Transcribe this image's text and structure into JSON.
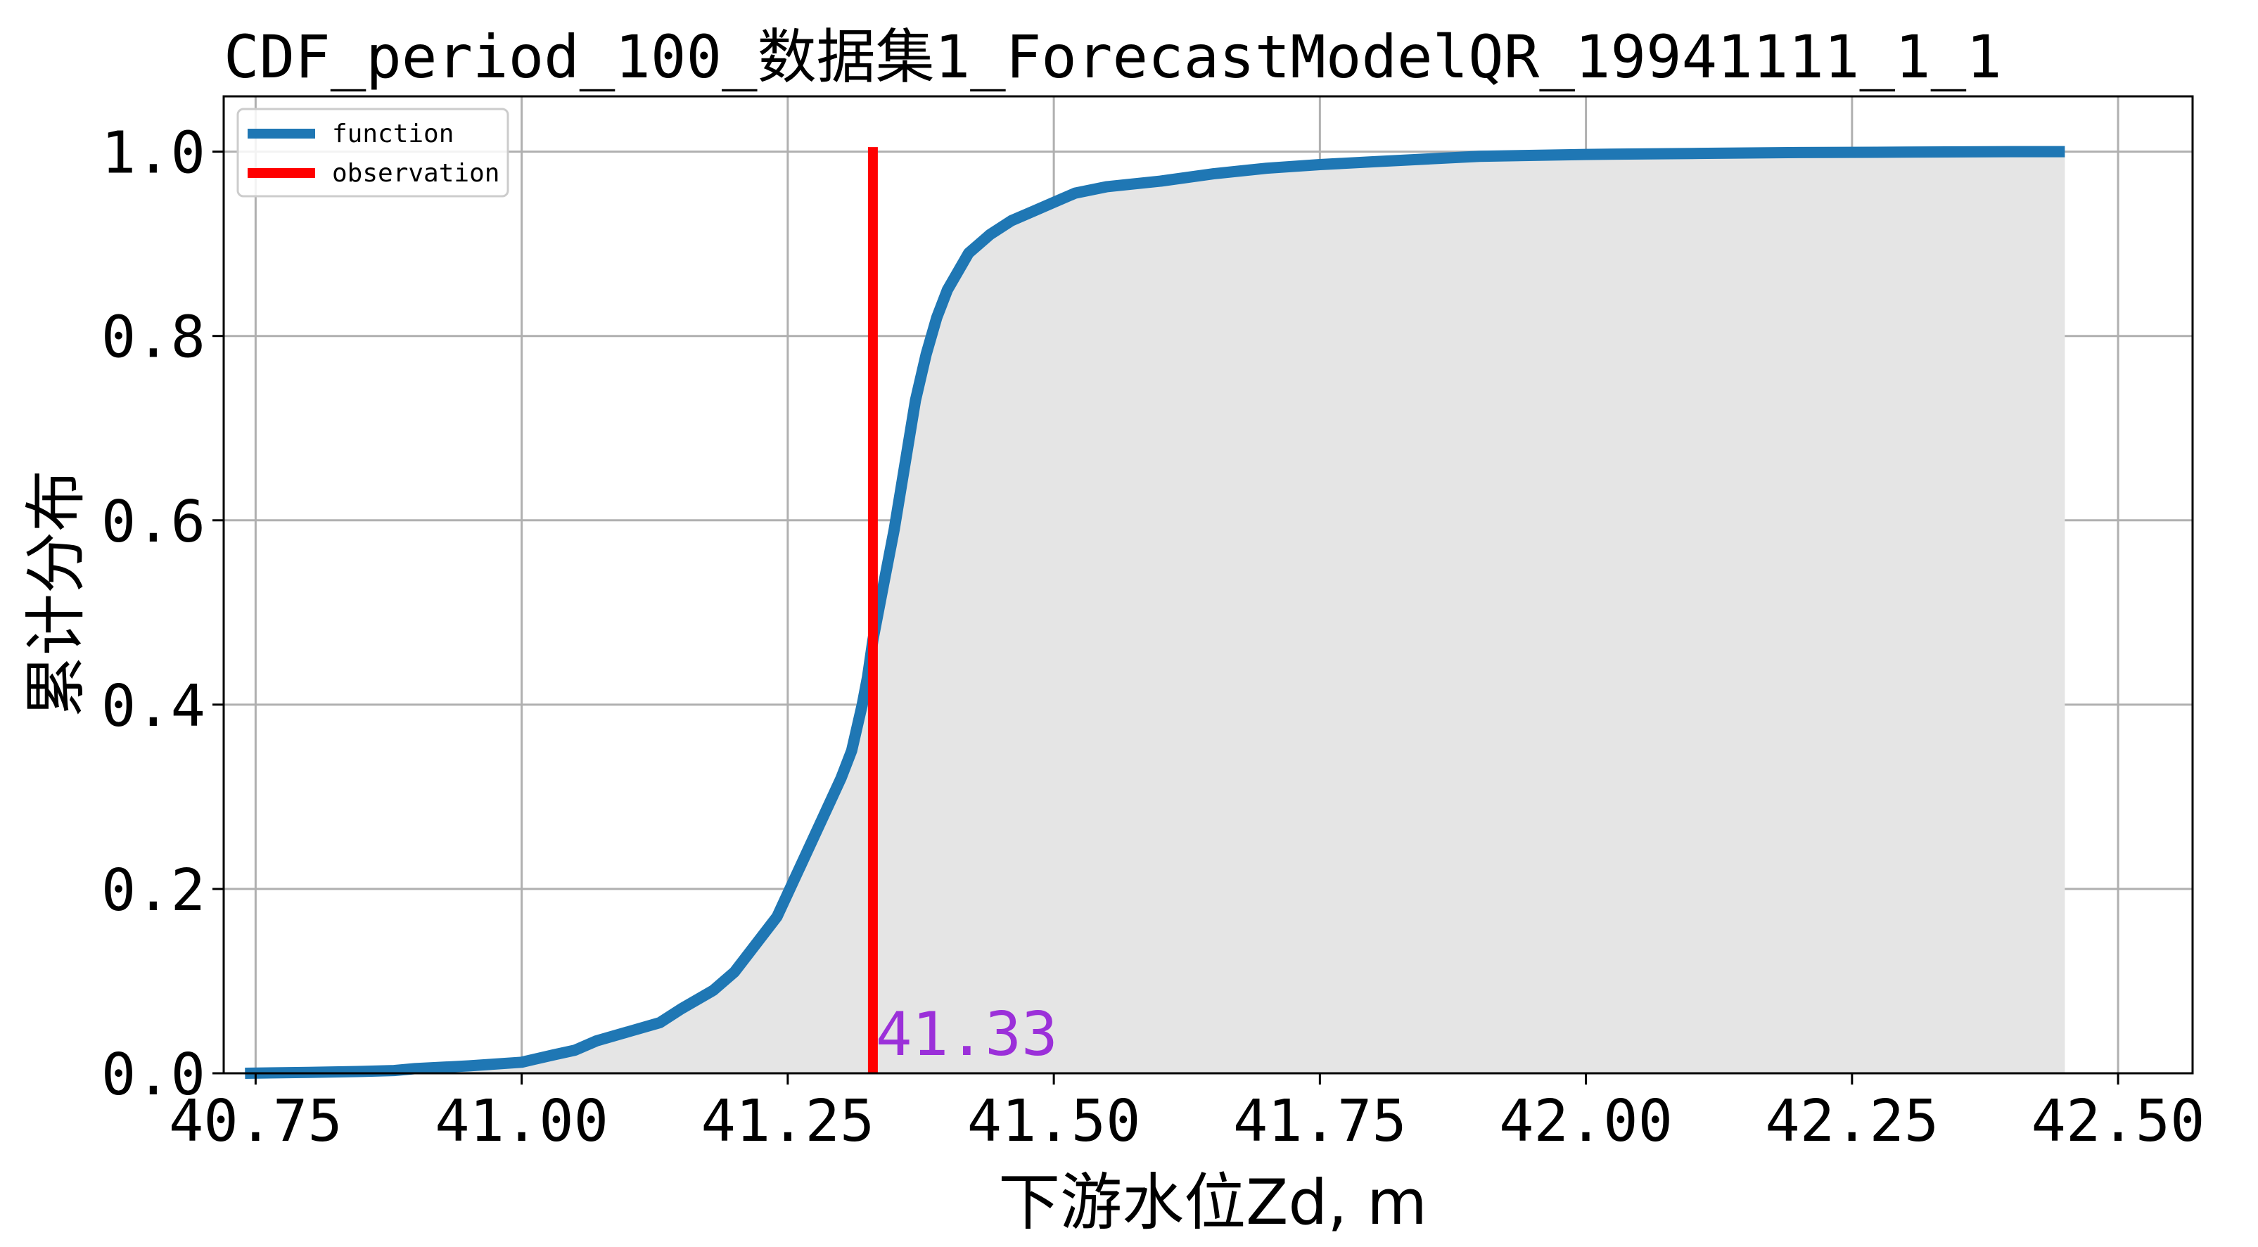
{
  "chart_data": {
    "type": "line",
    "title": "CDF_period_100_数据集1_ForecastModelQR_19941111_1_1",
    "xlabel": "下游水位Zd, m",
    "ylabel": "累计分布",
    "xlim": [
      40.72,
      42.57
    ],
    "ylim": [
      0.0,
      1.06
    ],
    "xticks": [
      "40.75",
      "41.00",
      "41.25",
      "41.50",
      "41.75",
      "42.00",
      "42.25",
      "42.50"
    ],
    "xtick_values": [
      40.75,
      41.0,
      41.25,
      41.5,
      41.75,
      42.0,
      42.25,
      42.5
    ],
    "yticks": [
      "0.0",
      "0.2",
      "0.4",
      "0.6",
      "0.8",
      "1.0"
    ],
    "ytick_values": [
      0.0,
      0.2,
      0.4,
      0.6,
      0.8,
      1.0
    ],
    "grid": true,
    "legend_position": "top-left",
    "series": [
      {
        "name": "function",
        "color": "#1f77b4",
        "fill_color": "#e5e5e5",
        "x": [
          40.74,
          40.8,
          40.85,
          40.88,
          40.9,
          40.95,
          41.0,
          41.03,
          41.05,
          41.07,
          41.1,
          41.13,
          41.15,
          41.18,
          41.2,
          41.22,
          41.24,
          41.26,
          41.28,
          41.3,
          41.31,
          41.32,
          41.325,
          41.33,
          41.34,
          41.35,
          41.36,
          41.37,
          41.38,
          41.39,
          41.4,
          41.42,
          41.44,
          41.46,
          41.48,
          41.5,
          41.52,
          41.55,
          41.6,
          41.65,
          41.7,
          41.75,
          41.8,
          41.85,
          41.9,
          42.0,
          42.1,
          42.2,
          42.3,
          42.4,
          42.45
        ],
        "y": [
          0.0,
          0.001,
          0.002,
          0.003,
          0.005,
          0.008,
          0.012,
          0.02,
          0.025,
          0.035,
          0.045,
          0.055,
          0.07,
          0.09,
          0.11,
          0.14,
          0.17,
          0.22,
          0.27,
          0.32,
          0.35,
          0.4,
          0.43,
          0.47,
          0.53,
          0.59,
          0.66,
          0.73,
          0.78,
          0.82,
          0.85,
          0.89,
          0.91,
          0.925,
          0.935,
          0.945,
          0.955,
          0.962,
          0.968,
          0.976,
          0.982,
          0.986,
          0.989,
          0.992,
          0.995,
          0.997,
          0.998,
          0.999,
          0.9995,
          1.0,
          1.0
        ]
      },
      {
        "name": "observation",
        "color": "#ff0000",
        "x_value": 41.33
      }
    ],
    "annotation": {
      "text": "41.33",
      "x": 41.33,
      "y": 0.02,
      "color": "#9b30d9"
    }
  }
}
